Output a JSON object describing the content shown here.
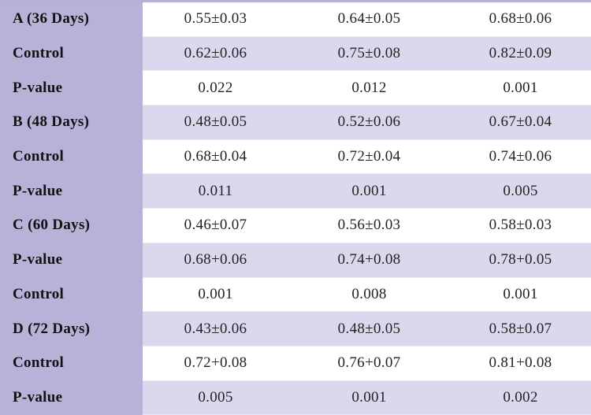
{
  "table": {
    "rows": [
      {
        "label": "A (36 Days)",
        "values": [
          "0.55±0.03",
          "0.64±0.05",
          "0.68±0.06"
        ]
      },
      {
        "label": "Control",
        "values": [
          "0.62±0.06",
          "0.75±0.08",
          "0.82±0.09"
        ]
      },
      {
        "label": "P-value",
        "values": [
          "0.022",
          "0.012",
          "0.001"
        ]
      },
      {
        "label": "B (48 Days)",
        "values": [
          "0.48±0.05",
          "0.52±0.06",
          "0.67±0.04"
        ]
      },
      {
        "label": "Control",
        "values": [
          "0.68±0.04",
          "0.72±0.04",
          "0.74±0.06"
        ]
      },
      {
        "label": "P-value",
        "values": [
          "0.011",
          "0.001",
          "0.005"
        ]
      },
      {
        "label": "C (60 Days)",
        "values": [
          "0.46±0.07",
          "0.56±0.03",
          "0.58±0.03"
        ]
      },
      {
        "label": "P-value",
        "values": [
          "0.68+0.06",
          "0.74+0.08",
          "0.78+0.05"
        ]
      },
      {
        "label": "Control",
        "values": [
          "0.001",
          "0.008",
          "0.001"
        ]
      },
      {
        "label": "D (72 Days)",
        "values": [
          "0.43±0.06",
          "0.48±0.05",
          "0.58±0.07"
        ]
      },
      {
        "label": "Control",
        "values": [
          "0.72+0.08",
          "0.76+0.07",
          "0.81+0.08"
        ]
      },
      {
        "label": "P-value",
        "values": [
          "0.005",
          "0.001",
          "0.002"
        ]
      }
    ]
  },
  "colors": {
    "label_column": "#b8b2d8",
    "row_light": "#dbd8ed",
    "row_white": "#ffffff"
  }
}
